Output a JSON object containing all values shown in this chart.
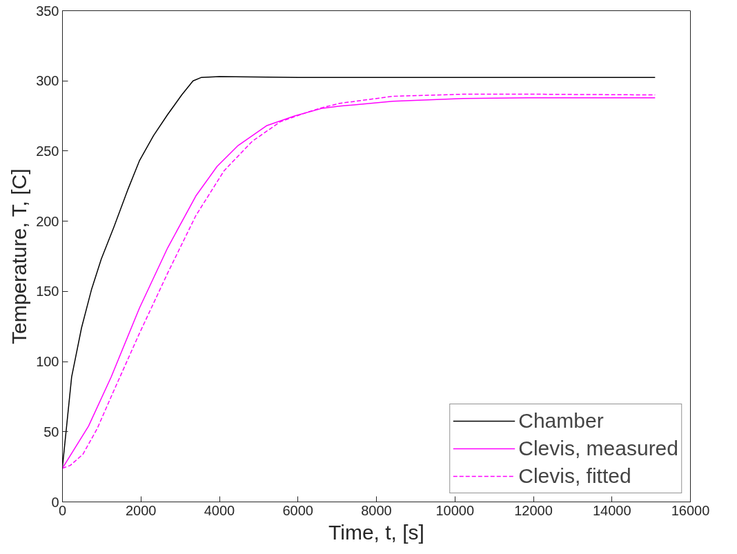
{
  "chart_data": {
    "type": "line",
    "xlabel": "Time, t, [s]",
    "ylabel": "Temperature, T, [C]",
    "xlim": [
      0,
      16000
    ],
    "ylim": [
      0,
      350
    ],
    "xticks": [
      0,
      2000,
      4000,
      6000,
      8000,
      10000,
      12000,
      14000,
      16000
    ],
    "yticks": [
      0,
      50,
      100,
      150,
      200,
      250,
      300,
      350
    ],
    "grid": false,
    "legend": "bottom right",
    "series": [
      {
        "name": "Chamber",
        "color": "#000000",
        "line_style": "solid",
        "x": [
          0,
          234,
          486,
          737,
          989,
          1313,
          1673,
          1960,
          2320,
          2680,
          3040,
          3327,
          3543,
          4000,
          6000,
          8000,
          10000,
          12000,
          14000,
          15100
        ],
        "values": [
          25,
          89,
          124,
          151,
          173,
          196,
          223,
          243,
          261,
          276,
          290,
          300,
          302.5,
          303,
          302.5,
          302.5,
          302.5,
          302.5,
          302.5,
          302.5
        ]
      },
      {
        "name": "Clevis, measured",
        "color": "#ff00ff",
        "line_style": "solid",
        "x": [
          0,
          665,
          1241,
          1960,
          2680,
          3399,
          3939,
          4478,
          5198,
          5917,
          6626,
          7068,
          8420,
          10217,
          12000,
          15100
        ],
        "values": [
          24,
          54,
          89,
          138,
          181,
          218,
          239,
          254,
          268,
          275,
          280.5,
          282,
          285.5,
          287.5,
          288,
          288
        ]
      },
      {
        "name": "Clevis, fitted",
        "color": "#ff00ff",
        "line_style": "dashed",
        "x": [
          0,
          200,
          522,
          881,
          1241,
          1960,
          2680,
          3399,
          4119,
          4838,
          5558,
          6277,
          6626,
          7068,
          8420,
          10217,
          12000,
          15100
        ],
        "values": [
          24,
          26,
          34,
          52,
          75,
          120,
          163,
          204,
          236,
          257,
          271,
          278,
          281,
          284,
          289,
          290.5,
          290.5,
          290
        ]
      }
    ]
  }
}
